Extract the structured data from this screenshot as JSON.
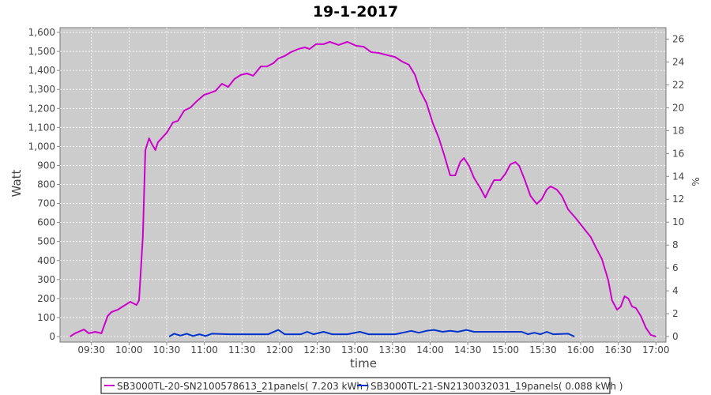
{
  "chart_data": {
    "type": "line",
    "title": "19-1-2017",
    "xlabel": "time",
    "ylabel": "Watt",
    "y2label": "%",
    "xlim": [
      "09:05",
      "17:08"
    ],
    "ylim": [
      -29,
      1625
    ],
    "y2lim": [
      -0.48,
      27.0
    ],
    "x_ticks": [
      "09:30",
      "10:00",
      "10:30",
      "11:00",
      "11:30",
      "12:00",
      "12:30",
      "13:00",
      "13:30",
      "14:00",
      "14:30",
      "15:00",
      "15:30",
      "16:00",
      "16:30",
      "17:00"
    ],
    "y_ticks": [
      "0",
      "100",
      "200",
      "300",
      "400",
      "500",
      "600",
      "700",
      "800",
      "900",
      "1,000",
      "1,100",
      "1,200",
      "1,300",
      "1,400",
      "1,500",
      "1,600"
    ],
    "y2_ticks": [
      "0",
      "2",
      "4",
      "6",
      "8",
      "10",
      "12",
      "14",
      "16",
      "18",
      "20",
      "22",
      "24",
      "26"
    ],
    "grid": true,
    "legend_position": "bottom",
    "plot_background": "#cccccc",
    "series": [
      {
        "name": "SB3000TL-20-SN2100578613_21panels( 7.203 kWh )",
        "color": "#cc00cc",
        "x": [
          "09:13",
          "09:17",
          "09:24",
          "09:28",
          "09:33",
          "09:38",
          "09:43",
          "09:46",
          "09:51",
          "09:55",
          "10:01",
          "10:06",
          "10:08",
          "10:11",
          "10:13",
          "10:16",
          "10:18",
          "10:21",
          "10:23",
          "10:30",
          "10:35",
          "10:39",
          "10:44",
          "10:49",
          "10:54",
          "11:00",
          "11:04",
          "11:09",
          "11:14",
          "11:19",
          "11:24",
          "11:29",
          "11:34",
          "11:39",
          "11:45",
          "11:50",
          "11:55",
          "11:59",
          "12:04",
          "12:09",
          "12:15",
          "12:20",
          "12:24",
          "12:29",
          "12:35",
          "12:40",
          "12:47",
          "12:54",
          "13:01",
          "13:07",
          "13:13",
          "13:19",
          "13:26",
          "13:32",
          "13:38",
          "13:43",
          "13:48",
          "13:52",
          "13:57",
          "14:02",
          "14:07",
          "14:11",
          "14:16",
          "14:20",
          "14:24",
          "14:27",
          "14:31",
          "14:35",
          "14:40",
          "14:44",
          "14:47",
          "14:51",
          "14:56",
          "15:00",
          "15:04",
          "15:08",
          "15:11",
          "15:16",
          "15:20",
          "15:25",
          "15:29",
          "15:33",
          "15:36",
          "15:41",
          "15:45",
          "15:50",
          "15:57",
          "16:03",
          "16:08",
          "16:12",
          "16:17",
          "16:22",
          "16:25",
          "16:29",
          "16:32",
          "16:35",
          "16:38",
          "16:41",
          "16:44",
          "16:48",
          "16:52",
          "16:56",
          "17:00"
        ],
        "y": [
          0,
          17,
          37,
          17,
          25,
          17,
          108,
          129,
          141,
          158,
          183,
          166,
          191,
          524,
          981,
          1043,
          1015,
          981,
          1022,
          1072,
          1126,
          1135,
          1189,
          1205,
          1238,
          1272,
          1280,
          1293,
          1330,
          1313,
          1355,
          1376,
          1384,
          1372,
          1421,
          1421,
          1438,
          1463,
          1476,
          1496,
          1513,
          1521,
          1513,
          1538,
          1538,
          1550,
          1534,
          1550,
          1530,
          1525,
          1496,
          1492,
          1480,
          1471,
          1446,
          1430,
          1376,
          1293,
          1230,
          1126,
          1043,
          960,
          848,
          848,
          918,
          939,
          898,
          835,
          781,
          731,
          773,
          823,
          823,
          856,
          906,
          918,
          898,
          815,
          740,
          698,
          723,
          773,
          790,
          773,
          740,
          669,
          615,
          565,
          524,
          470,
          407,
          295,
          191,
          141,
          158,
          212,
          200,
          158,
          150,
          108,
          46,
          8,
          0
        ]
      },
      {
        "name": "SB3000TL-21-SN2130032031_19panels( 0.088 kWh )",
        "color": "#0033cc",
        "x": [
          "10:32",
          "10:36",
          "10:41",
          "10:46",
          "10:51",
          "10:56",
          "11:01",
          "11:06",
          "11:20",
          "11:51",
          "11:59",
          "12:04",
          "12:17",
          "12:22",
          "12:27",
          "12:35",
          "12:42",
          "12:54",
          "13:04",
          "13:11",
          "13:32",
          "13:38",
          "13:45",
          "13:51",
          "13:57",
          "14:03",
          "14:10",
          "14:16",
          "14:22",
          "14:29",
          "14:35",
          "15:13",
          "15:18",
          "15:23",
          "15:28",
          "15:33",
          "15:38",
          "15:50",
          "15:55"
        ],
        "y": [
          0,
          15,
          5,
          15,
          3,
          12,
          3,
          15,
          12,
          12,
          35,
          12,
          12,
          25,
          12,
          25,
          12,
          12,
          25,
          12,
          12,
          20,
          30,
          20,
          30,
          35,
          25,
          30,
          25,
          35,
          25,
          25,
          12,
          20,
          12,
          25,
          12,
          15,
          0
        ]
      }
    ]
  }
}
